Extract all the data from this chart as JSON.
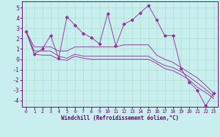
{
  "xlabel": "Windchill (Refroidissement éolien,°C)",
  "background_color": "#c8eeee",
  "grid_color": "#aaddcc",
  "line_color": "#993399",
  "tick_color": "#660066",
  "xlim": [
    -0.5,
    23.5
  ],
  "ylim": [
    -4.6,
    5.6
  ],
  "yticks": [
    -4,
    -3,
    -2,
    -1,
    0,
    1,
    2,
    3,
    4,
    5
  ],
  "xticks": [
    0,
    1,
    2,
    3,
    4,
    5,
    6,
    7,
    8,
    9,
    10,
    11,
    12,
    13,
    14,
    15,
    16,
    17,
    18,
    19,
    20,
    21,
    22,
    23
  ],
  "main_series": [
    2.7,
    0.5,
    1.0,
    2.3,
    0.1,
    4.1,
    3.3,
    2.5,
    2.1,
    1.5,
    4.4,
    1.3,
    3.4,
    3.8,
    4.5,
    5.2,
    3.8,
    2.3,
    2.3,
    -0.9,
    -2.2,
    -3.0,
    -4.5,
    -3.3
  ],
  "line1": [
    2.7,
    1.2,
    1.2,
    1.2,
    0.8,
    0.8,
    1.2,
    1.2,
    1.2,
    1.2,
    1.2,
    1.2,
    1.4,
    1.4,
    1.4,
    1.4,
    0.4,
    0.0,
    -0.3,
    -0.8,
    -1.3,
    -1.8,
    -2.5,
    -3.3
  ],
  "line2": [
    2.7,
    0.8,
    0.8,
    0.8,
    0.3,
    0.1,
    0.5,
    0.3,
    0.3,
    0.3,
    0.3,
    0.3,
    0.3,
    0.3,
    0.3,
    0.3,
    -0.2,
    -0.6,
    -0.8,
    -1.2,
    -1.7,
    -2.3,
    -2.9,
    -3.6
  ],
  "line3": [
    2.7,
    0.5,
    0.4,
    0.4,
    0.0,
    -0.1,
    0.3,
    0.1,
    0.0,
    0.0,
    0.0,
    0.0,
    0.0,
    0.0,
    0.0,
    0.0,
    -0.4,
    -0.9,
    -1.1,
    -1.5,
    -2.0,
    -2.7,
    -3.2,
    -3.8
  ]
}
